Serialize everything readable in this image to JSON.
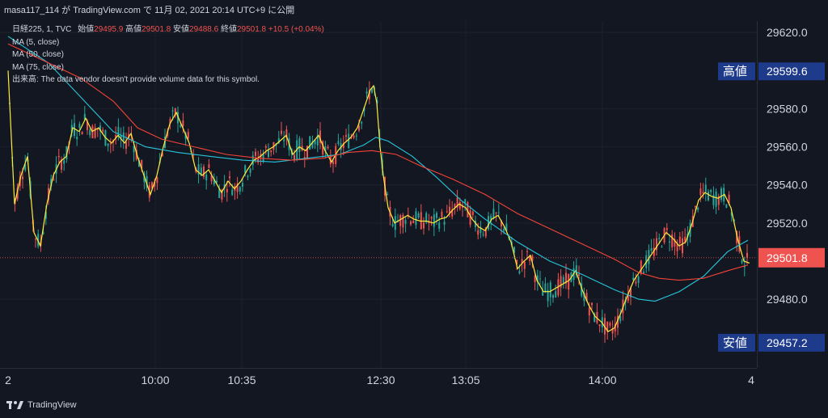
{
  "header": {
    "title": "masa117_114 が TradingView.com で 11月 02, 2021 20:14 UTC+9 に公開"
  },
  "legend": {
    "symbol": "日経225, 1, TVC",
    "ohlc": [
      {
        "label": "始値",
        "value": "29495.9"
      },
      {
        "label": "高値",
        "value": "29501.8"
      },
      {
        "label": "安値",
        "value": "29488.6"
      },
      {
        "label": "終値",
        "value": "29501.8"
      }
    ],
    "change": "+10.5 (+0.04%)",
    "indicators": [
      "MA (5, close)",
      "MA (50, close)",
      "MA (75, close)"
    ],
    "volume_label": "出来高:",
    "volume_msg": "The data vendor doesn't provide volume data for this symbol."
  },
  "footer": {
    "brand": "TradingView"
  },
  "chart_data": {
    "type": "line",
    "title": "日経225, 1, TVC",
    "x_ticks": [
      {
        "label": "2",
        "x": 10
      },
      {
        "label": "10:00",
        "x": 192
      },
      {
        "label": "10:35",
        "x": 299
      },
      {
        "label": "12:30",
        "x": 471
      },
      {
        "label": "13:05",
        "x": 576
      },
      {
        "label": "14:00",
        "x": 745
      },
      {
        "label": "4",
        "x": 929
      }
    ],
    "y_ticks": [
      29620.0,
      29580.0,
      29560.0,
      29540.0,
      29520.0,
      29480.0
    ],
    "ylim": [
      29444,
      29626
    ],
    "xlim": [
      10,
      929
    ],
    "last_price": {
      "value": 29501.8,
      "label": "29501.8",
      "color": "#ef5350"
    },
    "high_marker": {
      "label": "高値",
      "value": "29599.6"
    },
    "low_marker": {
      "label": "安値",
      "value": "29457.2"
    },
    "series": [
      {
        "name": "MA (5, close)",
        "color": "#ffeb3b",
        "points": [
          [
            10,
            29600
          ],
          [
            18,
            29530
          ],
          [
            26,
            29545
          ],
          [
            34,
            29555
          ],
          [
            42,
            29515
          ],
          [
            50,
            29508
          ],
          [
            58,
            29530
          ],
          [
            66,
            29545
          ],
          [
            74,
            29552
          ],
          [
            82,
            29555
          ],
          [
            90,
            29570
          ],
          [
            98,
            29568
          ],
          [
            106,
            29575
          ],
          [
            114,
            29568
          ],
          [
            122,
            29570
          ],
          [
            130,
            29565
          ],
          [
            138,
            29562
          ],
          [
            146,
            29566
          ],
          [
            154,
            29562
          ],
          [
            162,
            29567
          ],
          [
            170,
            29555
          ],
          [
            178,
            29545
          ],
          [
            186,
            29535
          ],
          [
            194,
            29545
          ],
          [
            202,
            29560
          ],
          [
            210,
            29572
          ],
          [
            218,
            29578
          ],
          [
            226,
            29570
          ],
          [
            234,
            29562
          ],
          [
            242,
            29548
          ],
          [
            250,
            29545
          ],
          [
            258,
            29548
          ],
          [
            266,
            29542
          ],
          [
            274,
            29536
          ],
          [
            282,
            29542
          ],
          [
            290,
            29538
          ],
          [
            298,
            29542
          ],
          [
            306,
            29548
          ],
          [
            314,
            29553
          ],
          [
            322,
            29555
          ],
          [
            330,
            29558
          ],
          [
            338,
            29560
          ],
          [
            346,
            29563
          ],
          [
            354,
            29566
          ],
          [
            362,
            29556
          ],
          [
            370,
            29560
          ],
          [
            378,
            29558
          ],
          [
            386,
            29562
          ],
          [
            394,
            29566
          ],
          [
            402,
            29558
          ],
          [
            410,
            29552
          ],
          [
            418,
            29558
          ],
          [
            426,
            29562
          ],
          [
            434,
            29565
          ],
          [
            442,
            29570
          ],
          [
            450,
            29580
          ],
          [
            458,
            29590
          ],
          [
            462,
            29592
          ],
          [
            466,
            29583
          ],
          [
            470,
            29560
          ],
          [
            474,
            29545
          ],
          [
            480,
            29528
          ],
          [
            488,
            29520
          ],
          [
            496,
            29522
          ],
          [
            504,
            29524
          ],
          [
            512,
            29522
          ],
          [
            520,
            29521
          ],
          [
            528,
            29521
          ],
          [
            536,
            29520
          ],
          [
            544,
            29522
          ],
          [
            552,
            29523
          ],
          [
            560,
            29527
          ],
          [
            568,
            29530
          ],
          [
            576,
            29528
          ],
          [
            584,
            29522
          ],
          [
            592,
            29518
          ],
          [
            600,
            29516
          ],
          [
            608,
            29522
          ],
          [
            616,
            29524
          ],
          [
            624,
            29518
          ],
          [
            632,
            29510
          ],
          [
            640,
            29496
          ],
          [
            648,
            29500
          ],
          [
            656,
            29503
          ],
          [
            664,
            29490
          ],
          [
            672,
            29484
          ],
          [
            680,
            29484
          ],
          [
            688,
            29486
          ],
          [
            696,
            29488
          ],
          [
            704,
            29490
          ],
          [
            712,
            29495
          ],
          [
            720,
            29485
          ],
          [
            728,
            29477
          ],
          [
            736,
            29471
          ],
          [
            744,
            29468
          ],
          [
            752,
            29463
          ],
          [
            760,
            29465
          ],
          [
            768,
            29473
          ],
          [
            776,
            29482
          ],
          [
            784,
            29490
          ],
          [
            792,
            29495
          ],
          [
            800,
            29500
          ],
          [
            808,
            29505
          ],
          [
            816,
            29510
          ],
          [
            824,
            29515
          ],
          [
            832,
            29512
          ],
          [
            840,
            29508
          ],
          [
            848,
            29510
          ],
          [
            856,
            29520
          ],
          [
            864,
            29532
          ],
          [
            872,
            29536
          ],
          [
            880,
            29534
          ],
          [
            888,
            29533
          ],
          [
            896,
            29535
          ],
          [
            904,
            29528
          ],
          [
            912,
            29512
          ],
          [
            920,
            29500
          ],
          [
            927,
            29499
          ]
        ]
      },
      {
        "name": "MA (50, close)",
        "color": "#26c6da",
        "points": [
          [
            10,
            29618
          ],
          [
            60,
            29604
          ],
          [
            100,
            29586
          ],
          [
            140,
            29568
          ],
          [
            180,
            29560
          ],
          [
            220,
            29557
          ],
          [
            260,
            29555
          ],
          [
            300,
            29553
          ],
          [
            340,
            29552
          ],
          [
            380,
            29554
          ],
          [
            420,
            29556
          ],
          [
            450,
            29561
          ],
          [
            465,
            29565
          ],
          [
            480,
            29563
          ],
          [
            510,
            29555
          ],
          [
            540,
            29544
          ],
          [
            570,
            29532
          ],
          [
            600,
            29522
          ],
          [
            640,
            29510
          ],
          [
            680,
            29500
          ],
          [
            720,
            29493
          ],
          [
            760,
            29485
          ],
          [
            790,
            29480
          ],
          [
            810,
            29479
          ],
          [
            840,
            29484
          ],
          [
            870,
            29492
          ],
          [
            900,
            29505
          ],
          [
            925,
            29511
          ]
        ]
      },
      {
        "name": "MA (75, close)",
        "color": "#f44336",
        "points": [
          [
            10,
            29614
          ],
          [
            60,
            29604
          ],
          [
            100,
            29596
          ],
          [
            140,
            29584
          ],
          [
            170,
            29570
          ],
          [
            200,
            29564
          ],
          [
            240,
            29560
          ],
          [
            280,
            29556
          ],
          [
            320,
            29554
          ],
          [
            360,
            29553
          ],
          [
            400,
            29554
          ],
          [
            430,
            29557
          ],
          [
            460,
            29558
          ],
          [
            490,
            29556
          ],
          [
            520,
            29550
          ],
          [
            560,
            29543
          ],
          [
            600,
            29535
          ],
          [
            640,
            29525
          ],
          [
            680,
            29517
          ],
          [
            720,
            29509
          ],
          [
            760,
            29501
          ],
          [
            790,
            29494
          ],
          [
            815,
            29491
          ],
          [
            840,
            29490
          ],
          [
            870,
            29491
          ],
          [
            900,
            29495
          ],
          [
            925,
            29498
          ]
        ]
      }
    ]
  }
}
